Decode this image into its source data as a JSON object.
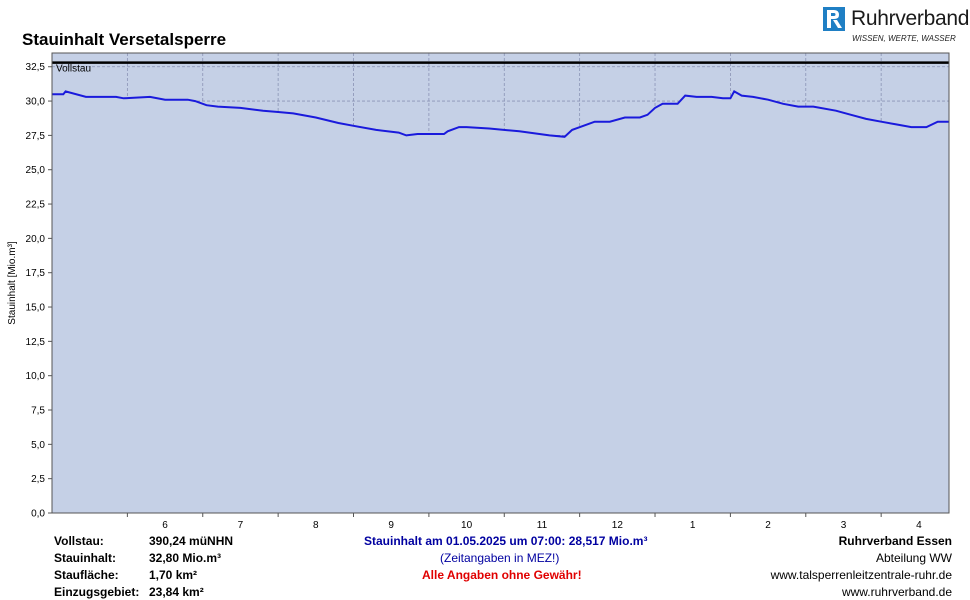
{
  "title": "Stauinhalt Versetalsperre",
  "logo": {
    "name": "Ruhrverband",
    "tagline": "WISSEN, WERTE, WASSER"
  },
  "colors": {
    "line": "#1a1adc",
    "fill": "#c5d0e6",
    "plot_bg": "#c5d0e6",
    "full_line": "#000000",
    "grid": "#8a93b5"
  },
  "chart_data": {
    "type": "area",
    "ylabel": "Stauinhalt [Mio.m³]",
    "ylim": [
      0,
      33.5
    ],
    "yticks": [
      "0,0",
      "2,5",
      "5,0",
      "7,5",
      "10,0",
      "12,5",
      "15,0",
      "17,5",
      "20,0",
      "22,5",
      "25,0",
      "27,5",
      "30,0",
      "32,5"
    ],
    "xlim": [
      0,
      11.9
    ],
    "xticks": [
      {
        "label": "6",
        "pos": 1.5
      },
      {
        "label": "7",
        "pos": 2.5
      },
      {
        "label": "8",
        "pos": 3.5
      },
      {
        "label": "9",
        "pos": 4.5
      },
      {
        "label": "10",
        "pos": 5.5
      },
      {
        "label": "11",
        "pos": 6.5
      },
      {
        "label": "12",
        "pos": 7.5
      },
      {
        "label": "1",
        "pos": 8.5
      },
      {
        "label": "2",
        "pos": 9.5
      },
      {
        "label": "3",
        "pos": 10.5
      },
      {
        "label": "4",
        "pos": 11.5
      }
    ],
    "full_level": {
      "label": "Vollstau",
      "value": 32.8
    },
    "series": [
      {
        "x": [
          0,
          0.15,
          0.18,
          0.45,
          0.5,
          0.85,
          0.95,
          1.3,
          1.5,
          1.8,
          1.9,
          2.05,
          2.2,
          2.5,
          2.8,
          3.0,
          3.2,
          3.5,
          3.8,
          4.0,
          4.3,
          4.6,
          4.7,
          4.85,
          5.2,
          5.25,
          5.4,
          5.5,
          5.8,
          6.2,
          6.6,
          6.8,
          6.9,
          7.05,
          7.2,
          7.4,
          7.6,
          7.8,
          7.9,
          8.0,
          8.1,
          8.15,
          8.3,
          8.4,
          8.55,
          8.75,
          8.9,
          9.0,
          9.05,
          9.15,
          9.3,
          9.5,
          9.7,
          9.9,
          10.1,
          10.4,
          10.6,
          10.8,
          11.0,
          11.2,
          11.4,
          11.6,
          11.75,
          11.8,
          11.9
        ],
        "y": [
          30.5,
          30.5,
          30.7,
          30.3,
          30.3,
          30.3,
          30.2,
          30.3,
          30.1,
          30.1,
          30.0,
          29.7,
          29.6,
          29.5,
          29.3,
          29.2,
          29.1,
          28.8,
          28.4,
          28.2,
          27.9,
          27.7,
          27.5,
          27.6,
          27.6,
          27.8,
          28.1,
          28.1,
          28.0,
          27.8,
          27.5,
          27.4,
          27.9,
          28.2,
          28.5,
          28.5,
          28.8,
          28.8,
          29.0,
          29.5,
          29.8,
          29.8,
          29.8,
          30.4,
          30.3,
          30.3,
          30.2,
          30.2,
          30.7,
          30.4,
          30.3,
          30.1,
          29.8,
          29.6,
          29.6,
          29.3,
          29.0,
          28.7,
          28.5,
          28.3,
          28.1,
          28.1,
          28.5,
          28.5,
          28.5
        ]
      }
    ],
    "grid": true
  },
  "info": {
    "left": [
      {
        "label": "Vollstau:",
        "value": "390,24 müNHN"
      },
      {
        "label": "Stauinhalt:",
        "value": "32,80 Mio.m³"
      },
      {
        "label": "Staufläche:",
        "value": "1,70 km²"
      },
      {
        "label": "Einzugsgebiet:",
        "value": "23,84 km²"
      }
    ],
    "center": {
      "status": "Stauinhalt am 01.05.2025 um 07:00:  28,517 Mio.m³",
      "timezone": "(Zeitangaben in MEZ!)",
      "disclaimer": "Alle Angaben ohne Gewähr!"
    },
    "right": {
      "org": "Ruhrverband Essen",
      "dept": "Abteilung WW",
      "url1": "www.talsperrenleitzentrale-ruhr.de",
      "url2": "www.ruhrverband.de"
    }
  }
}
